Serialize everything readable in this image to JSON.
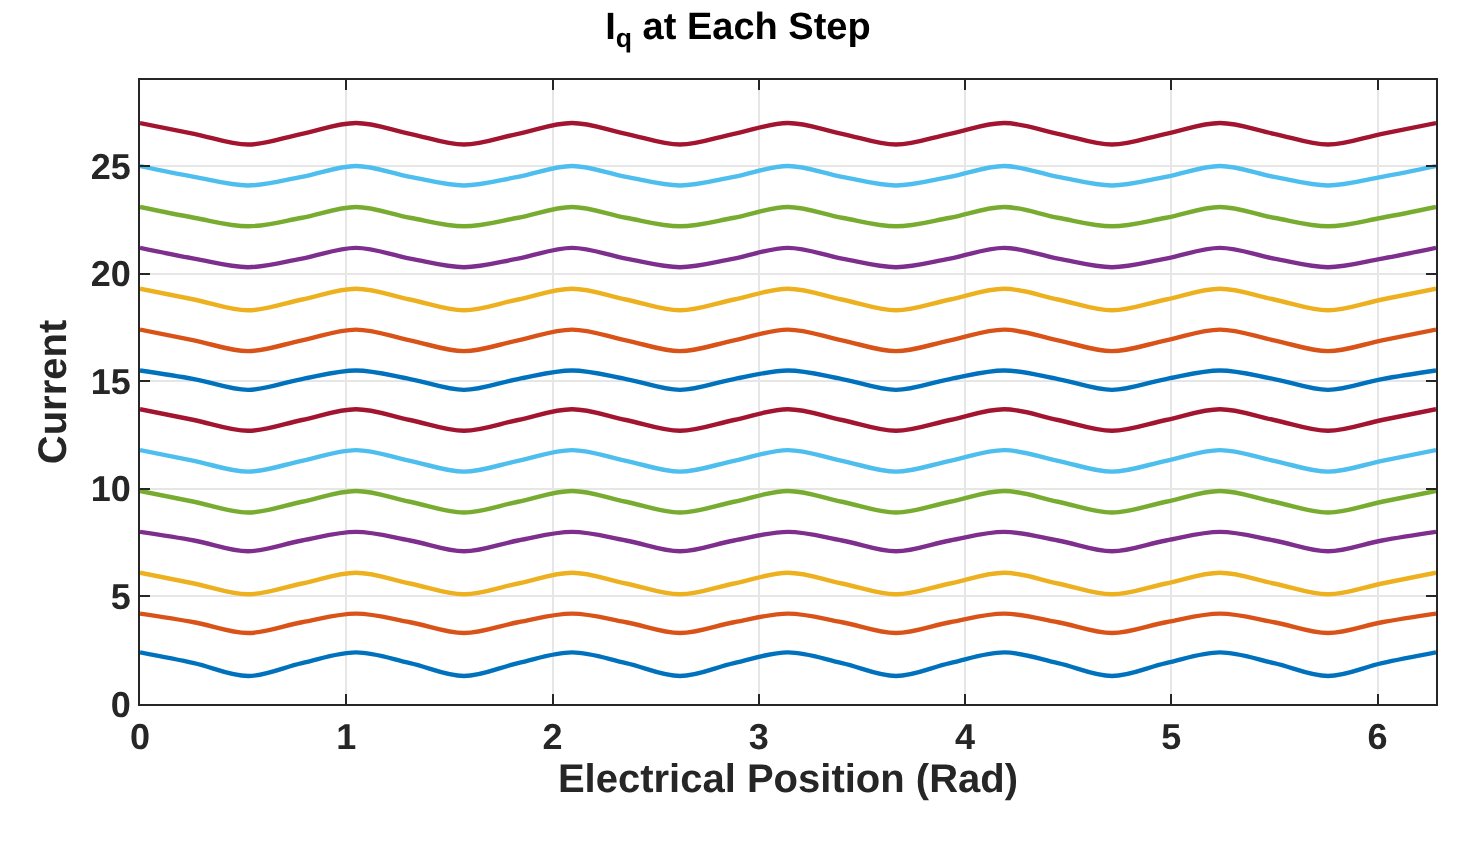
{
  "chart_data": {
    "type": "line",
    "title": "I$_{q}$ at Each Step",
    "xlabel": "Electrical Position (Rad)",
    "ylabel": "Current",
    "x": [
      0,
      0.2618,
      0.5236,
      0.7854,
      1.0472,
      1.309,
      1.5708,
      1.8326,
      2.0944,
      2.3562,
      2.618,
      2.8798,
      3.1416,
      3.4034,
      3.6652,
      3.927,
      4.1888,
      4.4506,
      4.7124,
      4.9742,
      5.236,
      5.4978,
      5.7596,
      6.0214,
      6.2832
    ],
    "series": [
      {
        "color": "#0072bd",
        "values": [
          2.4,
          1.9,
          1.3,
          1.9,
          2.4,
          1.9,
          1.3,
          1.9,
          2.4,
          1.9,
          1.3,
          1.9,
          2.4,
          1.9,
          1.3,
          1.9,
          2.4,
          1.9,
          1.3,
          1.9,
          2.4,
          1.9,
          1.3,
          1.9,
          2.4
        ]
      },
      {
        "color": "#d95319",
        "values": [
          4.2,
          3.8,
          3.3,
          3.8,
          4.2,
          3.8,
          3.3,
          3.8,
          4.2,
          3.8,
          3.3,
          3.8,
          4.2,
          3.8,
          3.3,
          3.8,
          4.2,
          3.8,
          3.3,
          3.8,
          4.2,
          3.8,
          3.3,
          3.8,
          4.2
        ]
      },
      {
        "color": "#edb120",
        "values": [
          6.1,
          5.6,
          5.1,
          5.6,
          6.1,
          5.6,
          5.1,
          5.6,
          6.1,
          5.6,
          5.1,
          5.6,
          6.1,
          5.6,
          5.1,
          5.6,
          6.1,
          5.6,
          5.1,
          5.6,
          6.1,
          5.6,
          5.1,
          5.6,
          6.1
        ]
      },
      {
        "color": "#7e2f8e",
        "values": [
          8.0,
          7.6,
          7.1,
          7.6,
          8.0,
          7.6,
          7.1,
          7.6,
          8.0,
          7.6,
          7.1,
          7.6,
          8.0,
          7.6,
          7.1,
          7.6,
          8.0,
          7.6,
          7.1,
          7.6,
          8.0,
          7.6,
          7.1,
          7.6,
          8.0
        ]
      },
      {
        "color": "#77ac30",
        "values": [
          9.9,
          9.4,
          8.9,
          9.4,
          9.9,
          9.4,
          8.9,
          9.4,
          9.9,
          9.4,
          8.9,
          9.4,
          9.9,
          9.4,
          8.9,
          9.4,
          9.9,
          9.4,
          8.9,
          9.4,
          9.9,
          9.4,
          8.9,
          9.4,
          9.9
        ]
      },
      {
        "color": "#4dbeee",
        "values": [
          11.8,
          11.3,
          10.8,
          11.3,
          11.8,
          11.3,
          10.8,
          11.3,
          11.8,
          11.3,
          10.8,
          11.3,
          11.8,
          11.3,
          10.8,
          11.3,
          11.8,
          11.3,
          10.8,
          11.3,
          11.8,
          11.3,
          10.8,
          11.3,
          11.8
        ]
      },
      {
        "color": "#a2142f",
        "values": [
          13.7,
          13.2,
          12.7,
          13.2,
          13.7,
          13.2,
          12.7,
          13.2,
          13.7,
          13.2,
          12.7,
          13.2,
          13.7,
          13.2,
          12.7,
          13.2,
          13.7,
          13.2,
          12.7,
          13.2,
          13.7,
          13.2,
          12.7,
          13.2,
          13.7
        ]
      },
      {
        "color": "#0072bd",
        "values": [
          15.5,
          15.1,
          14.6,
          15.1,
          15.5,
          15.1,
          14.6,
          15.1,
          15.5,
          15.1,
          14.6,
          15.1,
          15.5,
          15.1,
          14.6,
          15.1,
          15.5,
          15.1,
          14.6,
          15.1,
          15.5,
          15.1,
          14.6,
          15.1,
          15.5
        ]
      },
      {
        "color": "#d95319",
        "values": [
          17.4,
          16.9,
          16.4,
          16.9,
          17.4,
          16.9,
          16.4,
          16.9,
          17.4,
          16.9,
          16.4,
          16.9,
          17.4,
          16.9,
          16.4,
          16.9,
          17.4,
          16.9,
          16.4,
          16.9,
          17.4,
          16.9,
          16.4,
          16.9,
          17.4
        ]
      },
      {
        "color": "#edb120",
        "values": [
          19.3,
          18.8,
          18.3,
          18.8,
          19.3,
          18.8,
          18.3,
          18.8,
          19.3,
          18.8,
          18.3,
          18.8,
          19.3,
          18.8,
          18.3,
          18.8,
          19.3,
          18.8,
          18.3,
          18.8,
          19.3,
          18.8,
          18.3,
          18.8,
          19.3
        ]
      },
      {
        "color": "#7e2f8e",
        "values": [
          21.2,
          20.7,
          20.3,
          20.7,
          21.2,
          20.7,
          20.3,
          20.7,
          21.2,
          20.7,
          20.3,
          20.7,
          21.2,
          20.7,
          20.3,
          20.7,
          21.2,
          20.7,
          20.3,
          20.7,
          21.2,
          20.7,
          20.3,
          20.7,
          21.2
        ]
      },
      {
        "color": "#77ac30",
        "values": [
          23.1,
          22.6,
          22.2,
          22.6,
          23.1,
          22.6,
          22.2,
          22.6,
          23.1,
          22.6,
          22.2,
          22.6,
          23.1,
          22.6,
          22.2,
          22.6,
          23.1,
          22.6,
          22.2,
          22.6,
          23.1,
          22.6,
          22.2,
          22.6,
          23.1
        ]
      },
      {
        "color": "#4dbeee",
        "values": [
          25.0,
          24.5,
          24.1,
          24.5,
          25.0,
          24.5,
          24.1,
          24.5,
          25.0,
          24.5,
          24.1,
          24.5,
          25.0,
          24.5,
          24.1,
          24.5,
          25.0,
          24.5,
          24.1,
          24.5,
          25.0,
          24.5,
          24.1,
          24.5,
          25.0
        ]
      },
      {
        "color": "#a2142f",
        "values": [
          27.0,
          26.5,
          26.0,
          26.5,
          27.0,
          26.5,
          26.0,
          26.5,
          27.0,
          26.5,
          26.0,
          26.5,
          27.0,
          26.5,
          26.0,
          26.5,
          27.0,
          26.5,
          26.0,
          26.5,
          27.0,
          26.5,
          26.0,
          26.5,
          27.0
        ]
      }
    ],
    "xlim": [
      0,
      6.2832
    ],
    "xticks": [
      0,
      1,
      2,
      3,
      4,
      5,
      6
    ],
    "ylim": [
      0,
      29
    ],
    "yticks": [
      0,
      5,
      10,
      15,
      20,
      25
    ],
    "grid": true,
    "marker": "none",
    "line_style": "solid"
  }
}
